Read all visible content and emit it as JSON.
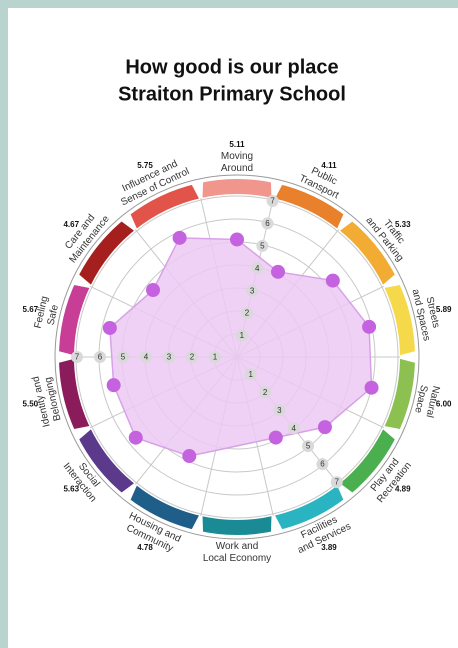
{
  "chart_data": {
    "type": "radar",
    "title": [
      "How good is our place",
      "Straiton Primary School"
    ],
    "categories": [
      "Moving Around",
      "Public Transport",
      "Traffic and Parking",
      "Streets and Spaces",
      "Natural Space",
      "Play and Recreation",
      "Facilities and Services",
      "Work and Local Economy",
      "Housing and Community",
      "Social Interaction",
      "Identity and Belonging",
      "Feeling Safe",
      "Care and Maintenance",
      "Influence and Sense of Control"
    ],
    "colors": [
      "#f1968d",
      "#e8802c",
      "#f2ac33",
      "#f6d84b",
      "#8cc152",
      "#4caf4f",
      "#2ab4c1",
      "#1a8b95",
      "#1f5e89",
      "#5b398b",
      "#8b1c5b",
      "#c83d95",
      "#a61f1f",
      "#e2534a"
    ],
    "series": [
      {
        "color": "#c462df",
        "fill": "#ecc9f3",
        "values": [
          5.11,
          4.11,
          5.33,
          5.89,
          6.0,
          4.89,
          3.89,
          null,
          4.78,
          5.63,
          5.5,
          5.67,
          4.67,
          5.75
        ],
        "value_labels": [
          "5.11",
          "4.11",
          "5.33",
          "5.89",
          "6.00",
          "4.89",
          "3.89",
          null,
          "4.78",
          "5.63",
          "5.50",
          "5.67",
          "4.67",
          "5.75"
        ]
      }
    ],
    "ylim": [
      0,
      7
    ],
    "yticks": [
      1,
      2,
      3,
      4,
      5,
      6,
      7
    ],
    "grid": true
  }
}
